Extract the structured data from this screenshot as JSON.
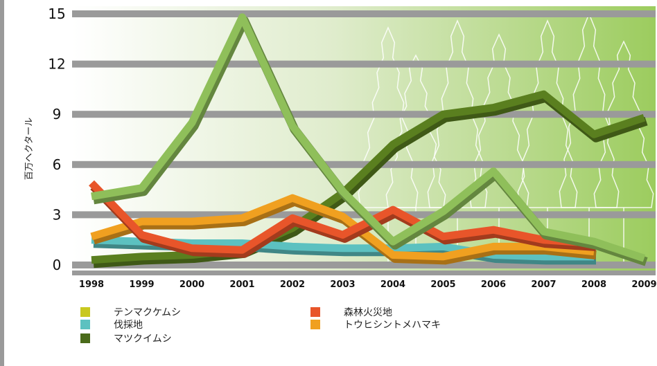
{
  "chart_data": {
    "type": "line",
    "ylabel": "百万ヘクタール",
    "xlabel": "",
    "title": "",
    "ylim": [
      0,
      15
    ],
    "yticks": [
      0,
      3,
      6,
      9,
      12,
      15
    ],
    "categories": [
      "1998",
      "1999",
      "2000",
      "2001",
      "2002",
      "2003",
      "2004",
      "2005",
      "2006",
      "2007",
      "2008",
      "2009"
    ],
    "grid": true,
    "legend_position": "bottom",
    "series": [
      {
        "name": "マツクイムシ",
        "color": "#5a7f1f",
        "values": [
          0.3,
          0.5,
          0.6,
          0.9,
          2.2,
          4.3,
          7.2,
          9.0,
          9.4,
          10.2,
          7.8,
          8.8
        ]
      },
      {
        "name": "伐採地",
        "color": "#5cc1c0",
        "values": [
          1.5,
          1.4,
          1.3,
          1.3,
          1.1,
          1.0,
          1.0,
          1.1,
          0.6,
          0.5,
          0.5,
          null
        ]
      },
      {
        "name": "トウヒシントメハマキ",
        "color": "#f0a020",
        "values": [
          1.7,
          2.6,
          2.6,
          2.8,
          4.0,
          2.9,
          0.6,
          0.5,
          1.1,
          1.1,
          0.8,
          null
        ]
      },
      {
        "name": "森林火災地",
        "color": "#e8552a",
        "values": [
          4.9,
          1.8,
          1.0,
          0.9,
          2.8,
          1.8,
          3.3,
          1.7,
          2.1,
          1.5,
          1.3,
          null
        ]
      },
      {
        "name": "テンマクケムシ",
        "color": "#8fbf5a",
        "values": [
          4.1,
          4.6,
          8.5,
          14.8,
          8.3,
          4.4,
          1.4,
          3.2,
          5.6,
          2.0,
          1.4,
          0.4
        ]
      }
    ],
    "legend": [
      {
        "name": "テンマクケムシ",
        "color": "#c8c81e"
      },
      {
        "name": "森林火災地",
        "color": "#e8552a"
      },
      {
        "name": "伐採地",
        "color": "#5cc1c0"
      },
      {
        "name": "トウヒシントメハマキ",
        "color": "#f0a020"
      },
      {
        "name": "マツクイムシ",
        "color": "#4a6b1a"
      }
    ]
  }
}
